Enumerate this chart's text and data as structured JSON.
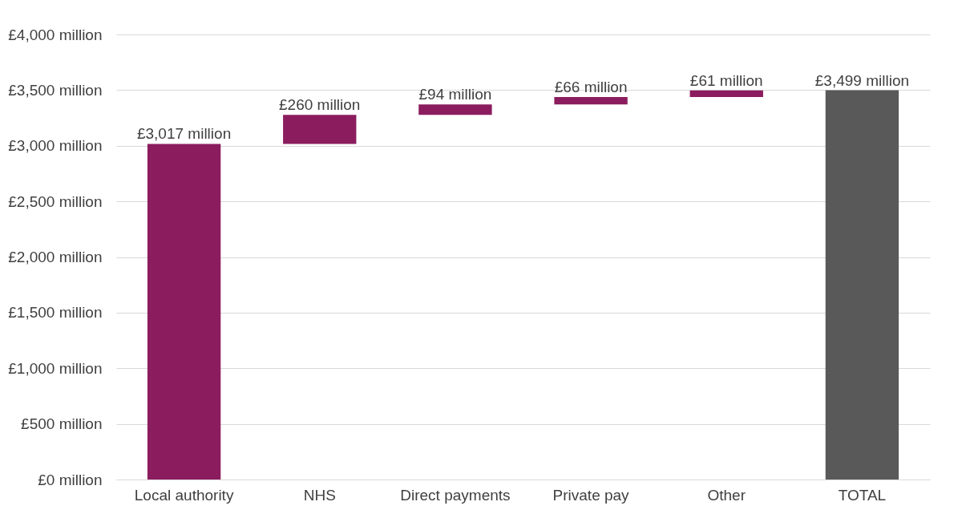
{
  "chart_data": {
    "type": "bar",
    "categories": [
      "Local authority",
      "NHS",
      "Direct payments",
      "Private pay",
      "Other",
      "TOTAL"
    ],
    "values": [
      3017,
      260,
      94,
      66,
      61,
      3499
    ],
    "base": [
      0,
      3017,
      3277,
      3371,
      3437,
      0
    ],
    "colors": [
      "#8b1c5e",
      "#8b1c5e",
      "#8b1c5e",
      "#8b1c5e",
      "#8b1c5e",
      "#595959"
    ],
    "value_labels": [
      "£3,017 million",
      "£260 million",
      "£94 million",
      "£66 million",
      "£61 million",
      "£3,499 million"
    ],
    "ylim": [
      0,
      4000
    ],
    "yticks": [
      {
        "value": 0,
        "label": "£0 million"
      },
      {
        "value": 500,
        "label": "£500 million"
      },
      {
        "value": 1000,
        "label": "£1,000 million"
      },
      {
        "value": 1500,
        "label": "£1,500 million"
      },
      {
        "value": 2000,
        "label": "£2,000 million"
      },
      {
        "value": 2500,
        "label": "£2,500 million"
      },
      {
        "value": 3000,
        "label": "£3,000 million"
      },
      {
        "value": 3500,
        "label": "£3,500 million"
      },
      {
        "value": 4000,
        "label": "£4,000 million"
      }
    ],
    "grid": "y"
  }
}
